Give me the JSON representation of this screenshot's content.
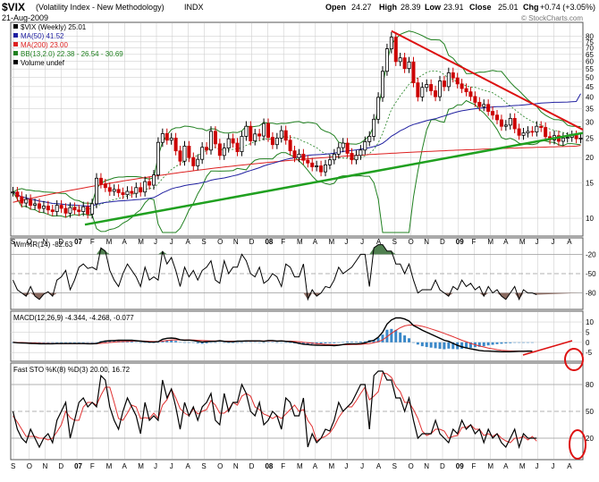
{
  "header": {
    "symbol": "$VIX",
    "name": "(Volatility Index - New Methodology)",
    "exchange": "INDX",
    "date": "21-Aug-2009",
    "open_label": "Open",
    "open": "24.27",
    "high_label": "High",
    "high": "28.39",
    "low_label": "Low",
    "low": "23.91",
    "close_label": "Close",
    "close": "25.01",
    "chg_label": "Chg",
    "chg": "+0.74 (+3.05%)",
    "watermark": "© StockCharts.com"
  },
  "legend": {
    "vix": "$VIX (Weekly) 25.01",
    "ma50": "MA(50) 41.52",
    "ma200": "MA(200) 23.00",
    "bb": "BB(13,2.0) 22.38 - 26.54 - 30.69",
    "volume": "Volume undef"
  },
  "panels": {
    "willr_label": "Wm%R(14) -82.63",
    "macd_label": "MACD(12,26,9) -4.344, -4.268, -0.077",
    "sto_label": "Fast STO %K(8) %D(3) 20.00, 16.72"
  },
  "colors": {
    "up": "#000000",
    "down": "#cc0000",
    "ma50": "#2020a0",
    "ma200": "#dd2020",
    "bb": "#208020",
    "trend_green": "#20a020",
    "trend_red": "#dd1111",
    "grid": "#d0d0d0",
    "panel_border": "#555555",
    "willr_fill": "#8a6a60",
    "willr_fill_top": "#508050",
    "hist": "#3a88c8"
  },
  "x_axis": {
    "labels": [
      "S",
      "O",
      "N",
      "D",
      "07",
      "F",
      "M",
      "A",
      "M",
      "J",
      "J",
      "A",
      "S",
      "O",
      "N",
      "D",
      "08",
      "F",
      "M",
      "A",
      "M",
      "J",
      "J",
      "A",
      "S",
      "O",
      "N",
      "D",
      "09",
      "F",
      "M",
      "A",
      "M",
      "J",
      "J",
      "A"
    ],
    "bold": [
      "07",
      "08",
      "09"
    ]
  },
  "chart_data": [
    {
      "type": "candlestick",
      "title": "$VIX (Volatility Index - New Methodology) INDX",
      "period": "Weekly, Sep 2006 - Aug 2009",
      "y_scale": "log",
      "ylim": [
        8.5,
        90
      ],
      "y_ticks": [
        10,
        15,
        20,
        25,
        30,
        35,
        40,
        45,
        50,
        55,
        60,
        65,
        70,
        75,
        80
      ],
      "close_series": [
        13.5,
        12.8,
        11.9,
        12.4,
        11.6,
        11.8,
        11.2,
        11.5,
        11.0,
        10.8,
        11.6,
        11.2,
        10.6,
        11.3,
        11.0,
        10.8,
        11.4,
        10.5,
        11.8,
        15.8,
        14.8,
        14.2,
        13.6,
        13.9,
        13.4,
        13.1,
        13.6,
        13.3,
        14.2,
        13.5,
        15.2,
        14.6,
        16.4,
        23.8,
        26.3,
        24.4,
        25.0,
        21.6,
        19.2,
        22.8,
        20.0,
        18.2,
        19.6,
        22.5,
        21.8,
        27.0,
        23.4,
        20.5,
        22.3,
        24.8,
        23.6,
        21.4,
        25.5,
        28.6,
        24.2,
        26.2,
        25.6,
        29.5,
        25.2,
        23.2,
        25.0,
        27.2,
        24.4,
        21.6,
        20.0,
        20.8,
        19.4,
        18.8,
        18.0,
        18.2,
        17.0,
        18.4,
        19.5,
        20.8,
        22.4,
        23.6,
        21.0,
        19.5,
        20.5,
        21.8,
        24.0,
        25.5,
        31.0,
        39.8,
        53.6,
        69.3,
        79.1,
        59.9,
        62.5,
        55.3,
        59.6,
        47.0,
        40.0,
        44.6,
        46.1,
        42.9,
        40.1,
        48.0,
        45.0,
        52.7,
        49.7,
        46.4,
        44.0,
        42.4,
        40.2,
        37.6,
        35.8,
        36.7,
        33.9,
        32.5,
        30.8,
        28.6,
        29.0,
        31.3,
        27.8,
        25.8,
        26.5,
        27.0,
        26.8,
        28.6,
        28.2,
        25.4,
        24.5,
        25.7,
        24.1,
        25.0,
        25.2,
        25.7,
        24.8,
        25.01
      ],
      "ma50": 41.52,
      "ma200": 23.0,
      "bollinger": {
        "period": 13,
        "stdev": 2.0,
        "lower": 22.38,
        "middle": 26.54,
        "upper": 30.69
      }
    },
    {
      "type": "line",
      "title": "Wm%R(14)",
      "ylim": [
        -100,
        0
      ],
      "y_ticks": [
        -20,
        -50,
        -80
      ],
      "values": [
        -60,
        -75,
        -80,
        -85,
        -70,
        -85,
        -90,
        -82,
        -78,
        -85,
        -60,
        -55,
        -45,
        -75,
        -60,
        -40,
        -35,
        -42,
        -40,
        -44,
        -10,
        -15,
        -45,
        -60,
        -70,
        -50,
        -35,
        -45,
        -55,
        -70,
        -40,
        -60,
        -55,
        -60,
        -15,
        -35,
        -25,
        -45,
        -70,
        -40,
        -55,
        -45,
        -60,
        -45,
        -40,
        -30,
        -60,
        -65,
        -30,
        -50,
        -40,
        -40,
        -20,
        -30,
        -50,
        -55,
        -40,
        -65,
        -60,
        -50,
        -55,
        -70,
        -35,
        -40,
        -55,
        -55,
        -35,
        -90,
        -75,
        -85,
        -80,
        -70,
        -72,
        -60,
        -40,
        -50,
        -45,
        -40,
        -30,
        -20,
        -20,
        -70,
        -10,
        -5,
        -5,
        -15,
        -15,
        -35,
        -35,
        -50,
        -35,
        -60,
        -80,
        -75,
        -75,
        -75,
        -60,
        -75,
        -80,
        -85,
        -70,
        -75,
        -60,
        -70,
        -65,
        -75,
        -70,
        -85,
        -70,
        -80,
        -75,
        -85,
        -90,
        -80,
        -70,
        -90,
        -75,
        -80,
        -80,
        -82.63
      ]
    },
    {
      "type": "line",
      "title": "MACD(12,26,9)",
      "ylim": [
        -8,
        14
      ],
      "y_ticks": [
        -5,
        0,
        5,
        10
      ],
      "macd": [
        0.0,
        -0.2,
        -0.3,
        -0.4,
        -0.5,
        -0.6,
        -0.7,
        -0.7,
        -0.7,
        -0.7,
        -0.6,
        -0.6,
        -0.6,
        -0.6,
        -0.6,
        -0.6,
        -0.6,
        -0.7,
        -0.7,
        -0.6,
        0.1,
        0.6,
        0.8,
        0.9,
        1.0,
        1.0,
        1.0,
        1.0,
        0.8,
        0.6,
        0.4,
        0.2,
        0.1,
        0.3,
        1.5,
        2.0,
        2.1,
        1.9,
        1.3,
        1.0,
        1.1,
        0.9,
        0.5,
        0.2,
        0.3,
        0.5,
        0.5,
        0.8,
        0.5,
        0.3,
        0.3,
        0.6,
        0.6,
        0.7,
        0.7,
        0.7,
        0.7,
        0.5,
        0.9,
        0.9,
        0.6,
        0.7,
        0.5,
        0.3,
        0.0,
        -0.5,
        -0.9,
        -1.1,
        -1.3,
        -1.4,
        -1.5,
        -1.5,
        -1.5,
        -1.6,
        -1.4,
        -1.1,
        -0.8,
        -0.8,
        -0.8,
        -0.6,
        -0.3,
        0.5,
        1.0,
        2.5,
        5.0,
        9.0,
        11.0,
        12.0,
        12.0,
        11.5,
        10.5,
        8.3,
        7.2,
        6.0,
        5.0,
        4.0,
        3.0,
        2.0,
        1.0,
        0.5,
        -0.5,
        -1.5,
        -2.2,
        -2.7,
        -3.2,
        -3.6,
        -4.0,
        -4.2,
        -4.3,
        -4.4,
        -4.5,
        -4.6,
        -4.6,
        -4.6,
        -4.5,
        -4.4,
        -4.4,
        -4.3,
        -4.344
      ],
      "signal": [
        0.0,
        -0.1,
        -0.1,
        -0.2,
        -0.3,
        -0.3,
        -0.4,
        -0.5,
        -0.5,
        -0.6,
        -0.6,
        -0.6,
        -0.6,
        -0.6,
        -0.6,
        -0.6,
        -0.6,
        -0.6,
        -0.6,
        -0.6,
        -0.5,
        -0.3,
        -0.1,
        0.1,
        0.3,
        0.4,
        0.5,
        0.6,
        0.7,
        0.7,
        0.6,
        0.5,
        0.4,
        0.4,
        0.6,
        0.9,
        1.1,
        1.2,
        1.2,
        1.2,
        1.2,
        1.1,
        1.0,
        0.9,
        0.8,
        0.7,
        0.7,
        0.7,
        0.6,
        0.6,
        0.6,
        0.6,
        0.6,
        0.6,
        0.6,
        0.6,
        0.7,
        0.7,
        0.7,
        0.7,
        0.7,
        0.7,
        0.6,
        0.6,
        0.5,
        0.3,
        0.0,
        -0.2,
        -0.4,
        -0.6,
        -0.8,
        -1.0,
        -1.1,
        -1.2,
        -1.3,
        -1.2,
        -1.2,
        -1.1,
        -1.1,
        -1.0,
        -0.8,
        -0.6,
        -0.2,
        0.3,
        1.2,
        2.8,
        4.4,
        5.9,
        7.2,
        8.1,
        8.5,
        8.5,
        8.3,
        7.9,
        7.3,
        6.6,
        5.9,
        5.2,
        4.4,
        3.6,
        2.8,
        1.9,
        1.0,
        0.3,
        -0.5,
        -1.2,
        -1.8,
        -2.3,
        -2.8,
        -3.2,
        -3.6,
        -3.9,
        -4.1,
        -4.2,
        -4.3,
        -4.3,
        -4.3,
        -4.3,
        -4.268
      ],
      "histogram_last": -0.077
    },
    {
      "type": "line",
      "title": "Fast STO %K(8) %D(3)",
      "ylim": [
        0,
        100
      ],
      "y_ticks": [
        20,
        50,
        80
      ],
      "k": [
        50,
        30,
        20,
        15,
        30,
        20,
        10,
        20,
        25,
        15,
        40,
        50,
        60,
        20,
        40,
        60,
        65,
        55,
        60,
        55,
        90,
        85,
        55,
        40,
        30,
        50,
        65,
        55,
        45,
        25,
        60,
        40,
        45,
        40,
        85,
        65,
        75,
        55,
        30,
        60,
        45,
        55,
        40,
        55,
        60,
        70,
        40,
        35,
        70,
        50,
        60,
        60,
        80,
        70,
        50,
        45,
        60,
        35,
        40,
        50,
        45,
        30,
        65,
        60,
        45,
        45,
        65,
        10,
        25,
        15,
        20,
        30,
        28,
        40,
        60,
        50,
        55,
        60,
        70,
        80,
        80,
        30,
        90,
        95,
        95,
        85,
        85,
        65,
        65,
        50,
        65,
        40,
        20,
        25,
        25,
        25,
        40,
        25,
        20,
        15,
        30,
        25,
        40,
        30,
        35,
        25,
        30,
        15,
        30,
        20,
        25,
        15,
        10,
        20,
        30,
        10,
        25,
        20,
        20,
        20.0
      ],
      "d": [
        45,
        38,
        30,
        22,
        22,
        22,
        20,
        20,
        18,
        20,
        27,
        35,
        50,
        43,
        40,
        40,
        55,
        60,
        60,
        57,
        68,
        77,
        77,
        60,
        42,
        40,
        48,
        57,
        55,
        42,
        43,
        42,
        48,
        42,
        57,
        63,
        75,
        65,
        53,
        48,
        45,
        53,
        47,
        50,
        52,
        62,
        57,
        48,
        48,
        52,
        60,
        57,
        67,
        70,
        67,
        55,
        52,
        47,
        45,
        42,
        45,
        42,
        47,
        52,
        57,
        50,
        52,
        40,
        33,
        17,
        20,
        22,
        26,
        33,
        43,
        50,
        55,
        55,
        62,
        70,
        77,
        63,
        67,
        72,
        93,
        92,
        88,
        78,
        72,
        60,
        60,
        52,
        42,
        28,
        23,
        25,
        30,
        30,
        28,
        20,
        22,
        23,
        32,
        32,
        35,
        30,
        30,
        23,
        25,
        22,
        25,
        20,
        17,
        15,
        20,
        20,
        22,
        18,
        22,
        16.72
      ]
    }
  ]
}
